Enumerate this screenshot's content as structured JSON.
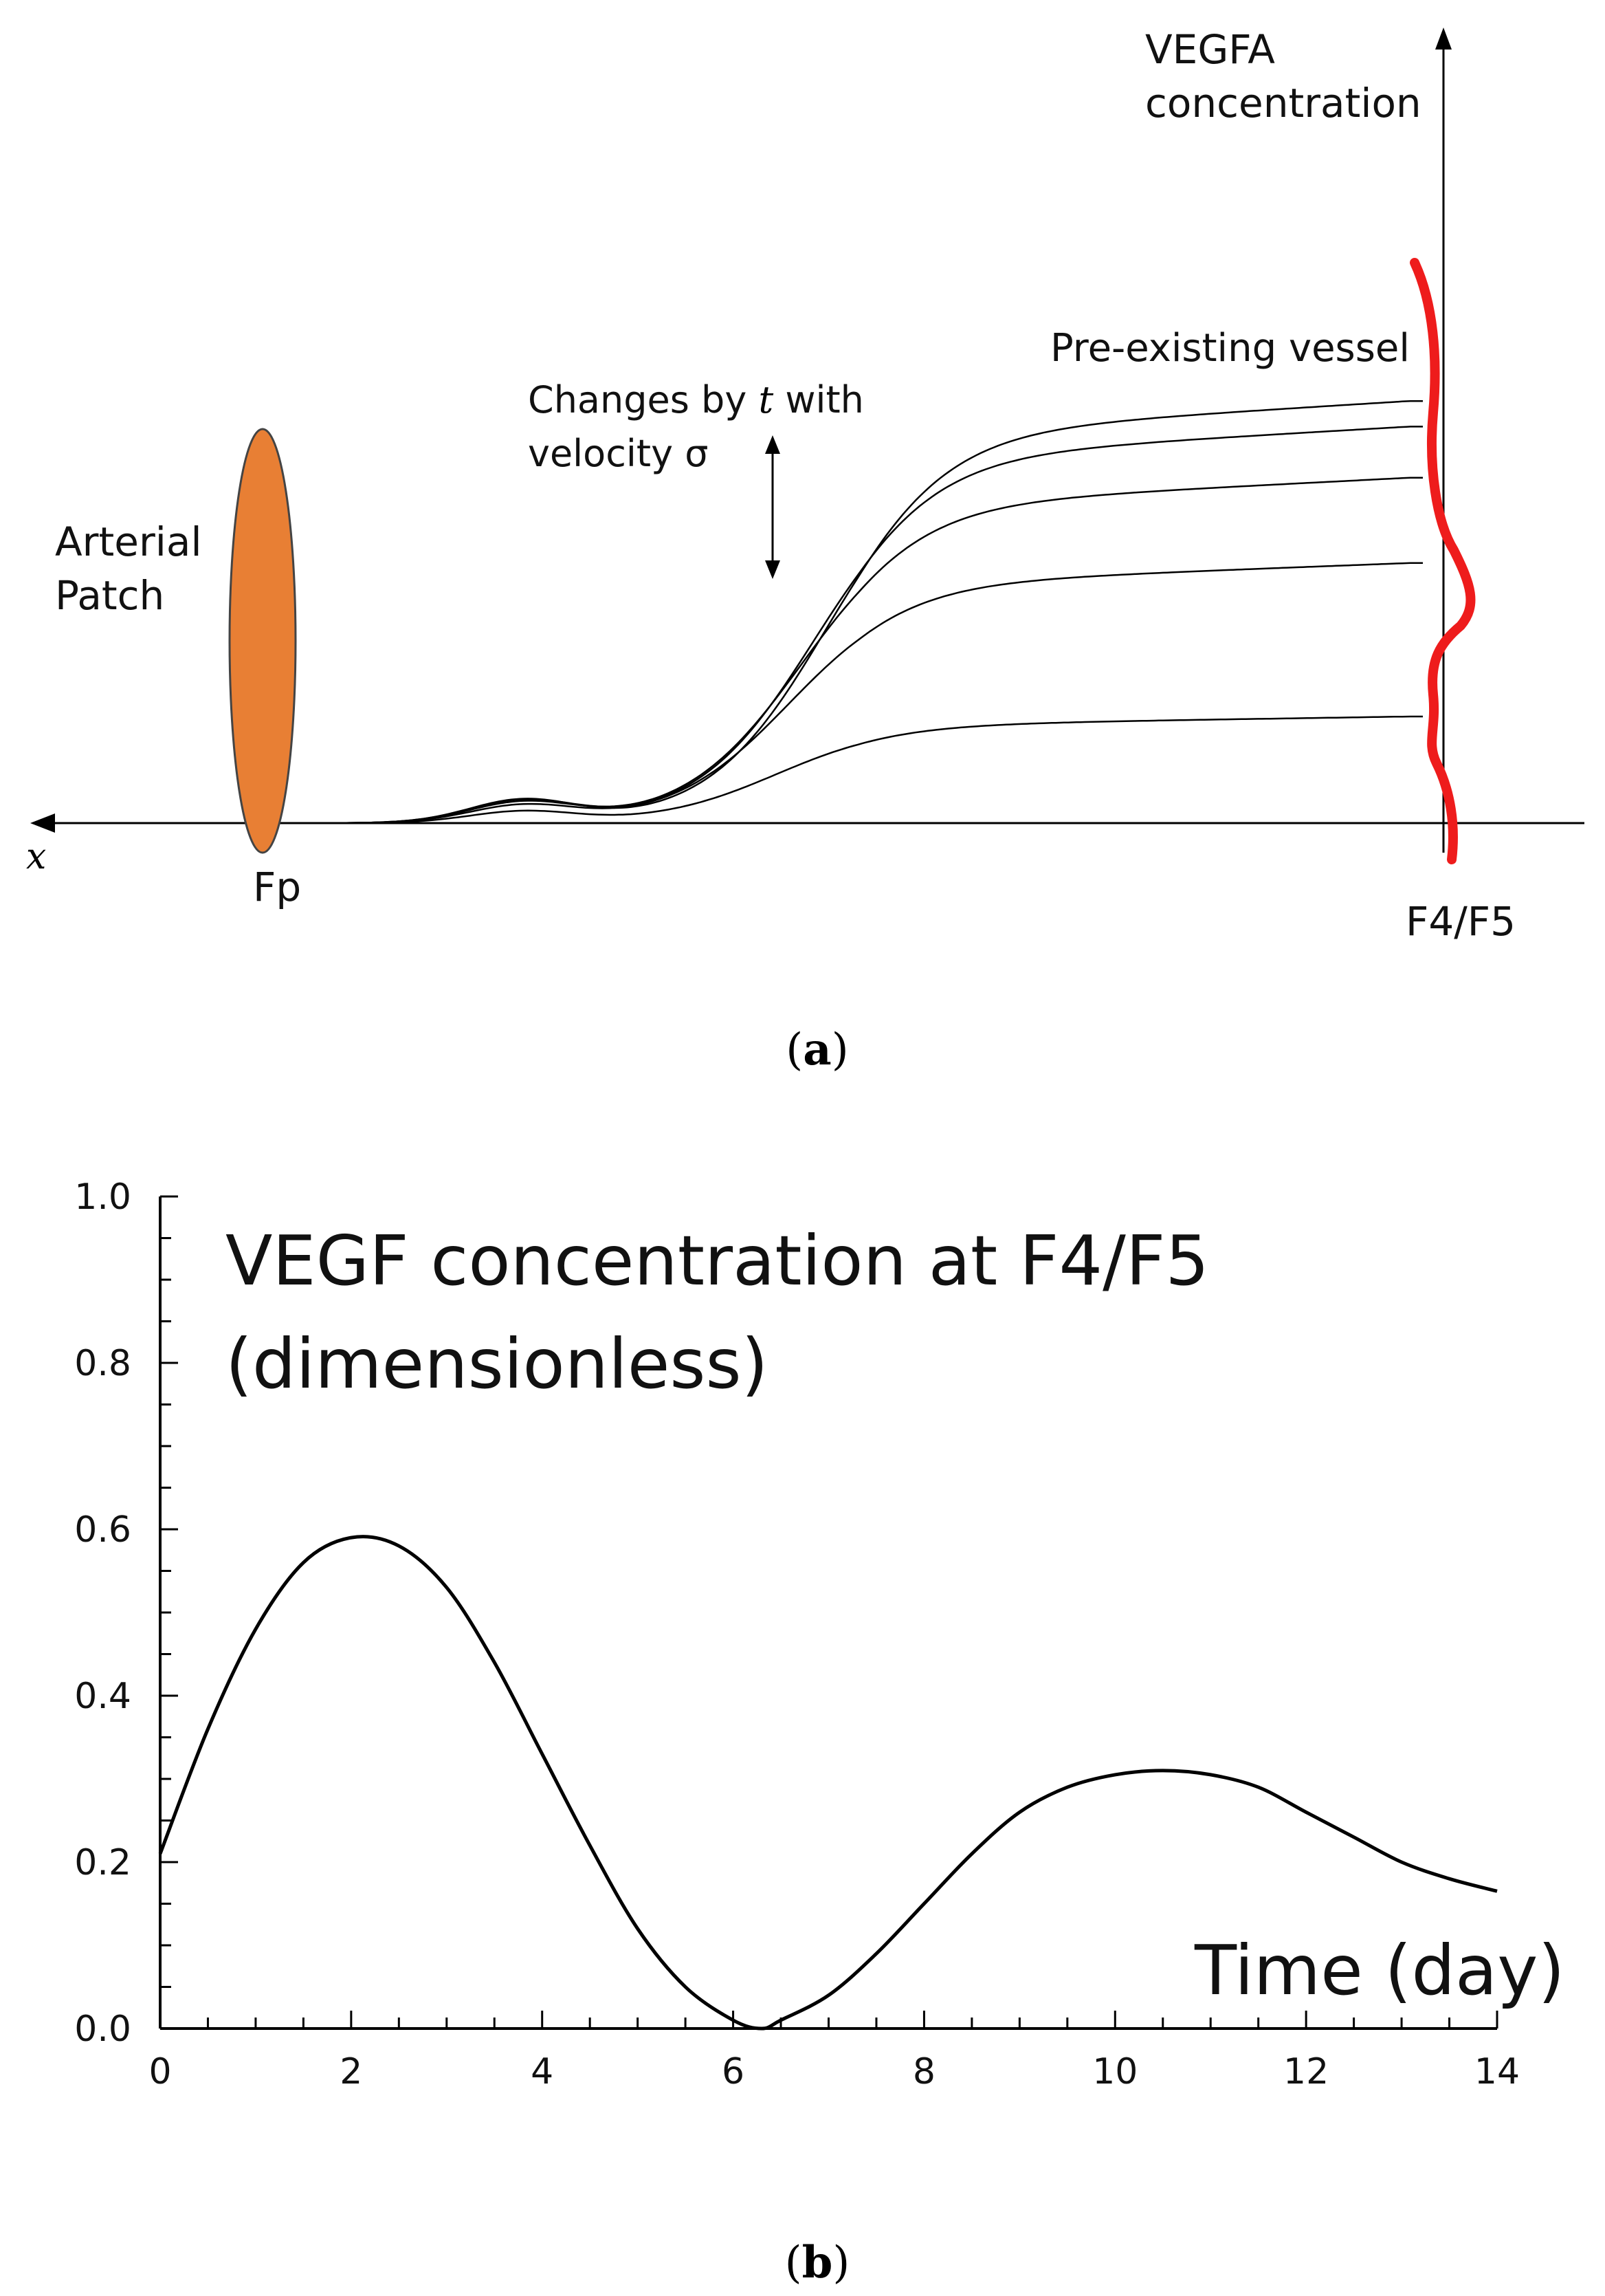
{
  "panel_a": {
    "caption_open": "(",
    "caption_letter": "a",
    "caption_close": ")",
    "y_axis_label_line1": "VEGFA",
    "y_axis_label_line2": "concentration",
    "x_axis_label": "x",
    "left_label_line1": "Arterial",
    "left_label_line2": "Patch",
    "fp_label": "Fp",
    "f4f5_label": "F4/F5",
    "vessel_label": "Pre-existing vessel",
    "changes_line1_a": "Changes by ",
    "changes_line1_t": "t",
    "changes_line1_b": " with",
    "changes_line2": "velocity σ",
    "patch_color": "#E87F34",
    "vessel_color": "#EE1C1C",
    "curve_plateaus": [
      0.25,
      0.61,
      0.81,
      0.93,
      0.99
    ]
  },
  "chart_data": {
    "type": "line",
    "title_line1": "VEGF concentration at F4/F5",
    "title_line2": "(dimensionless)",
    "xlabel": "Time (day)",
    "ylabel": "",
    "xlim": [
      0,
      14
    ],
    "ylim": [
      0,
      1.0
    ],
    "x_ticks": [
      "0",
      "2",
      "4",
      "6",
      "8",
      "10",
      "12",
      "14"
    ],
    "y_ticks": [
      "0.0",
      "0.2",
      "0.4",
      "0.6",
      "0.8",
      "1.0"
    ],
    "x": [
      0,
      0.5,
      1,
      1.5,
      2,
      2.5,
      3,
      3.5,
      4,
      4.5,
      5,
      5.5,
      6,
      6.3,
      6.5,
      7,
      7.5,
      8,
      8.5,
      9,
      9.5,
      10,
      10.5,
      11,
      11.5,
      12,
      12.5,
      13,
      13.5,
      14
    ],
    "values": [
      0.21,
      0.36,
      0.48,
      0.56,
      0.59,
      0.58,
      0.53,
      0.44,
      0.33,
      0.22,
      0.12,
      0.05,
      0.01,
      0.0,
      0.01,
      0.04,
      0.09,
      0.15,
      0.21,
      0.26,
      0.29,
      0.305,
      0.31,
      0.305,
      0.29,
      0.26,
      0.23,
      0.2,
      0.18,
      0.165
    ],
    "caption_open": "(",
    "caption_letter": "b",
    "caption_close": ")"
  }
}
